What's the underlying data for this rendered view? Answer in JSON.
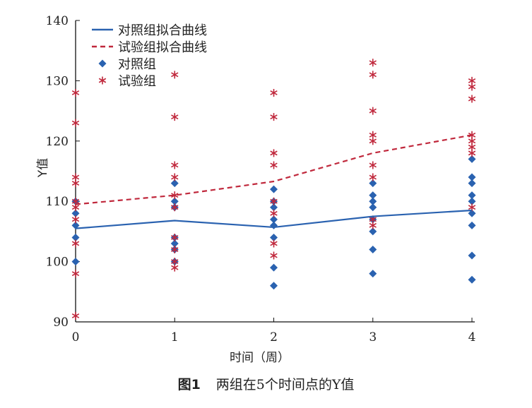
{
  "chart_data": {
    "type": "scatter",
    "title": "",
    "xlabel": "时间（周）",
    "ylabel": "Y值",
    "xlim": [
      0,
      4
    ],
    "ylim": [
      90,
      140
    ],
    "xticks": [
      0,
      1,
      2,
      3,
      4
    ],
    "yticks": [
      90,
      100,
      110,
      120,
      130,
      140
    ],
    "legend_placement": "top-left",
    "colors": {
      "control": "#2a62b0",
      "trial": "#c0283c"
    },
    "series": [
      {
        "name": "对照组拟合曲线",
        "kind": "line",
        "style": "solid",
        "color": "#2a62b0",
        "x": [
          0,
          1,
          2,
          3,
          4
        ],
        "y": [
          105.5,
          106.8,
          105.7,
          107.5,
          108.5
        ]
      },
      {
        "name": "试验组拟合曲线",
        "kind": "line",
        "style": "dashed",
        "color": "#c0283c",
        "x": [
          0,
          1,
          2,
          3,
          4
        ],
        "y": [
          109.5,
          111,
          113.3,
          118,
          121
        ]
      },
      {
        "name": "对照组",
        "kind": "points",
        "marker": "diamond",
        "color": "#2a62b0",
        "points": [
          [
            0,
            110
          ],
          [
            0,
            108
          ],
          [
            0,
            106
          ],
          [
            0,
            104
          ],
          [
            0,
            100
          ],
          [
            1,
            113
          ],
          [
            1,
            110
          ],
          [
            1,
            109
          ],
          [
            1,
            104
          ],
          [
            1,
            103
          ],
          [
            1,
            102
          ],
          [
            1,
            100
          ],
          [
            2,
            112
          ],
          [
            2,
            110
          ],
          [
            2,
            109
          ],
          [
            2,
            107
          ],
          [
            2,
            106
          ],
          [
            2,
            104
          ],
          [
            2,
            99
          ],
          [
            2,
            96
          ],
          [
            3,
            113
          ],
          [
            3,
            111
          ],
          [
            3,
            110
          ],
          [
            3,
            109
          ],
          [
            3,
            107
          ],
          [
            3,
            105
          ],
          [
            3,
            102
          ],
          [
            3,
            98
          ],
          [
            4,
            117
          ],
          [
            4,
            114
          ],
          [
            4,
            113
          ],
          [
            4,
            111
          ],
          [
            4,
            110
          ],
          [
            4,
            108
          ],
          [
            4,
            106
          ],
          [
            4,
            101
          ],
          [
            4,
            97
          ]
        ]
      },
      {
        "name": "试验组",
        "kind": "points",
        "marker": "asterisk",
        "color": "#c0283c",
        "points": [
          [
            0,
            128
          ],
          [
            0,
            123
          ],
          [
            0,
            114
          ],
          [
            0,
            113
          ],
          [
            0,
            110
          ],
          [
            0,
            109
          ],
          [
            0,
            107
          ],
          [
            0,
            103
          ],
          [
            0,
            98
          ],
          [
            0,
            91
          ],
          [
            1,
            131
          ],
          [
            1,
            124
          ],
          [
            1,
            116
          ],
          [
            1,
            114
          ],
          [
            1,
            111
          ],
          [
            1,
            109
          ],
          [
            1,
            104
          ],
          [
            1,
            102
          ],
          [
            1,
            100
          ],
          [
            1,
            99
          ],
          [
            2,
            128
          ],
          [
            2,
            124
          ],
          [
            2,
            118
          ],
          [
            2,
            116
          ],
          [
            2,
            110
          ],
          [
            2,
            108
          ],
          [
            2,
            103
          ],
          [
            2,
            101
          ],
          [
            3,
            133
          ],
          [
            3,
            131
          ],
          [
            3,
            125
          ],
          [
            3,
            121
          ],
          [
            3,
            120
          ],
          [
            3,
            116
          ],
          [
            3,
            114
          ],
          [
            3,
            107
          ],
          [
            3,
            106
          ],
          [
            4,
            130
          ],
          [
            4,
            129
          ],
          [
            4,
            127
          ],
          [
            4,
            121
          ],
          [
            4,
            120
          ],
          [
            4,
            119
          ],
          [
            4,
            118
          ],
          [
            4,
            109
          ]
        ]
      }
    ]
  },
  "caption": {
    "label": "图1",
    "text": "两组在5个时间点的Y值"
  }
}
